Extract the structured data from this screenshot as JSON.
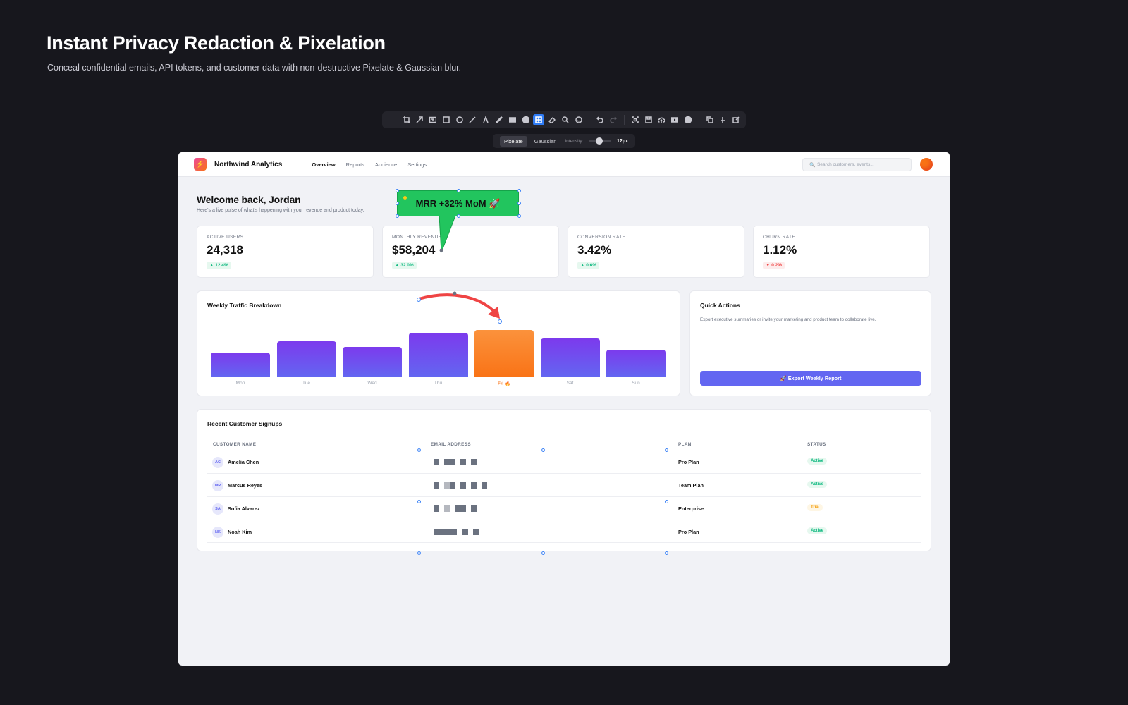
{
  "hero": {
    "title": "Instant Privacy Redaction & Pixelation",
    "subtitle": "Conceal confidential emails, API tokens, and customer data with non-destructive Pixelate & Gaussian blur."
  },
  "toolbar": {
    "tools": [
      "crop-icon",
      "arrow-icon",
      "text-box-icon",
      "rectangle-icon",
      "ellipse-icon",
      "line-icon",
      "marker-icon",
      "pen-icon",
      "redact-icon",
      "step-icon",
      "pixelate-icon",
      "eraser-icon",
      "magnifier-icon",
      "emoji-icon"
    ],
    "active_tool": "pixelate-icon"
  },
  "subbar": {
    "pixelate_label": "Pixelate",
    "gaussian_label": "Gaussian",
    "intensity_label": "Intensity:",
    "intensity_value": "12px",
    "intensity_fraction": 0.3
  },
  "app": {
    "brand": "Northwind Analytics",
    "nav": [
      "Overview",
      "Reports",
      "Audience",
      "Settings"
    ],
    "search_placeholder": "Search customers, events...",
    "welcome_title": "Welcome back, Jordan",
    "welcome_sub": "Here's a live pulse of what's happening with your revenue and product today.",
    "stats": [
      {
        "label": "ACTIVE USERS",
        "value": "24,318",
        "delta": "▲ 12.4%",
        "dir": "up"
      },
      {
        "label": "MONTHLY REVENUE",
        "value": "$58,204",
        "delta": "▲ 32.0%",
        "dir": "up"
      },
      {
        "label": "CONVERSION RATE",
        "value": "3.42%",
        "delta": "▲ 0.6%",
        "dir": "up"
      },
      {
        "label": "CHURN RATE",
        "value": "1.12%",
        "delta": "▼ 0.2%",
        "dir": "down"
      }
    ],
    "traffic_title": "Weekly Traffic Breakdown",
    "quick_actions_title": "Quick Actions",
    "quick_actions_text": "Export executive summaries or invite your marketing and product team to collaborate live.",
    "export_label": "🚀 Export Weekly Report",
    "signups_title": "Recent Customer Signups",
    "columns": [
      "CUSTOMER NAME",
      "EMAIL ADDRESS",
      "PLAN",
      "STATUS"
    ],
    "customers": [
      {
        "initials": "AC",
        "name": "Amelia Chen",
        "plan": "Pro Plan",
        "status": "Active"
      },
      {
        "initials": "MR",
        "name": "Marcus Reyes",
        "plan": "Team Plan",
        "status": "Active"
      },
      {
        "initials": "SA",
        "name": "Sofia Alvarez",
        "plan": "Enterprise",
        "status": "Trial"
      },
      {
        "initials": "NK",
        "name": "Noah Kim",
        "plan": "Pro Plan",
        "status": "Active"
      }
    ]
  },
  "annotation": {
    "callout_text": "MRR +32% MoM 🚀"
  },
  "chart_data": {
    "type": "bar",
    "categories": [
      "Mon",
      "Tue",
      "Wed",
      "Thu",
      "Fri 🔥",
      "Sat",
      "Sun"
    ],
    "values": [
      35,
      51,
      43,
      63,
      67,
      55,
      39
    ],
    "highlight_index": 4,
    "ylim": [
      0,
      100
    ],
    "colors": {
      "bar": "#6d4cf0",
      "highlight": "#f97316"
    }
  }
}
